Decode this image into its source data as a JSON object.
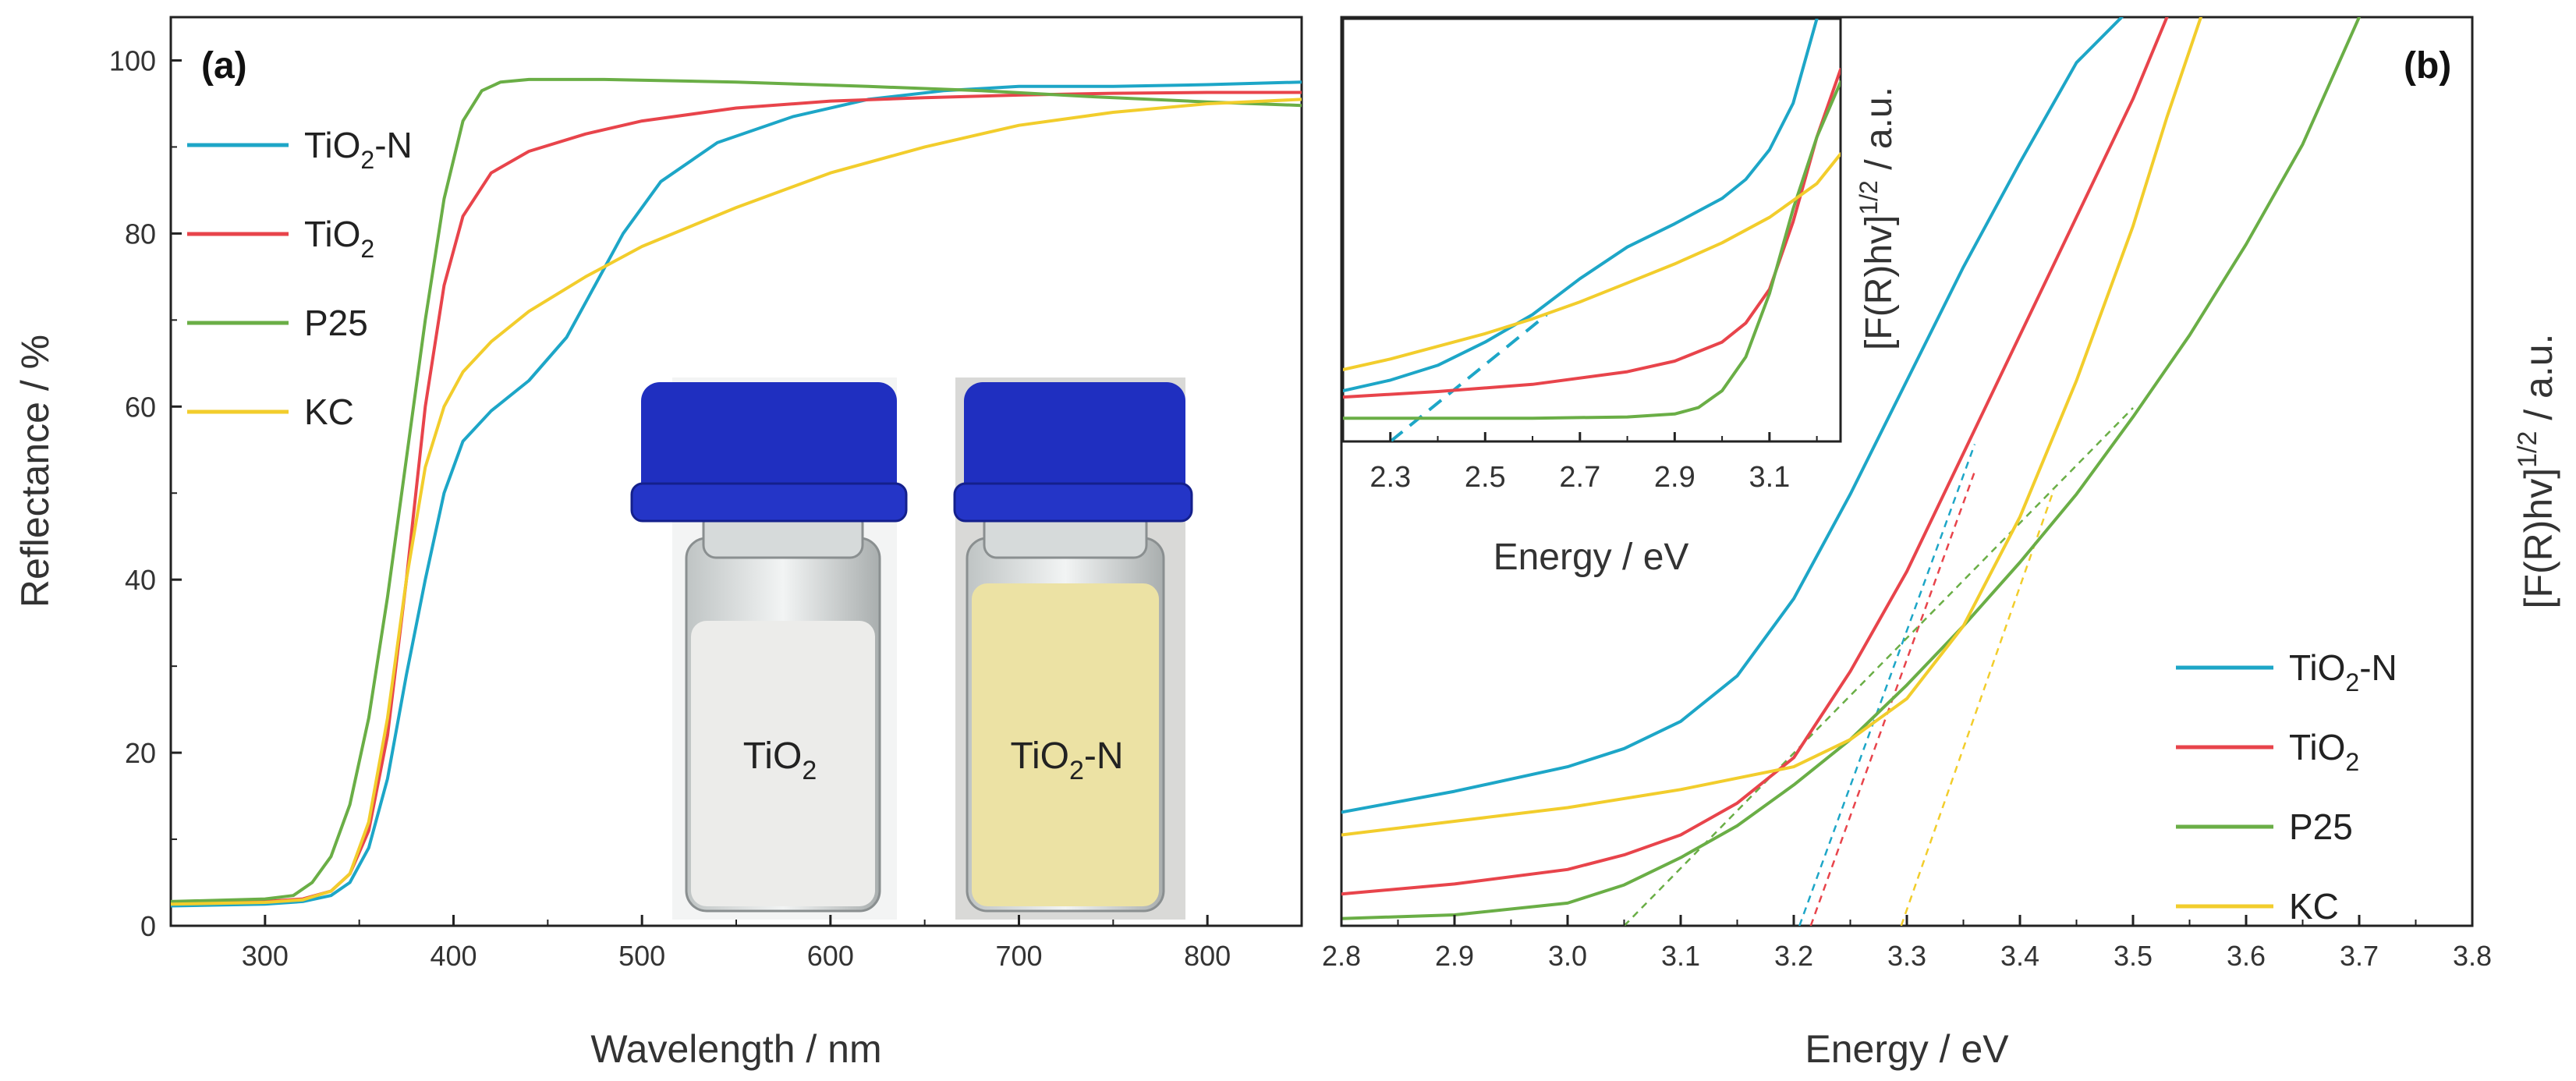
{
  "colors": {
    "TiO2-N": "#1da6c7",
    "TiO2": "#e8444b",
    "P25": "#6aae46",
    "KC": "#f2cd2c",
    "cap": "#1f2fc0",
    "powder_white": "#ececea",
    "powder_yellow": "#ece2a4"
  },
  "chart_data": [
    {
      "id": "a",
      "type": "line",
      "panel_label": "(a)",
      "xlabel": "Wavelength / nm",
      "ylabel": "Reflectance / %",
      "xlim": [
        250,
        850
      ],
      "ylim": [
        0,
        105
      ],
      "xticks": [
        300,
        400,
        500,
        600,
        700,
        800
      ],
      "yticks": [
        0,
        20,
        40,
        60,
        80,
        100
      ],
      "legend_position": "top-left",
      "legend": [
        {
          "label": "TiO",
          "sub": "2",
          "suffix": "-N",
          "series": "TiO2-N"
        },
        {
          "label": "TiO",
          "sub": "2",
          "suffix": "",
          "series": "TiO2"
        },
        {
          "label": "P25",
          "sub": "",
          "suffix": "",
          "series": "P25"
        },
        {
          "label": "KC",
          "sub": "",
          "suffix": "",
          "series": "KC"
        }
      ],
      "series": [
        {
          "name": "TiO2-N",
          "x": [
            250,
            300,
            320,
            335,
            345,
            355,
            365,
            375,
            385,
            395,
            405,
            420,
            440,
            460,
            475,
            490,
            510,
            540,
            580,
            620,
            660,
            700,
            750,
            800,
            850
          ],
          "y": [
            2.3,
            2.5,
            2.8,
            3.5,
            5,
            9,
            17,
            29,
            40,
            50,
            56,
            59.5,
            63,
            68,
            74,
            80,
            86,
            90.5,
            93.5,
            95.5,
            96.5,
            97,
            97,
            97.2,
            97.5
          ]
        },
        {
          "name": "TiO2",
          "x": [
            250,
            300,
            320,
            335,
            345,
            355,
            365,
            375,
            385,
            395,
            405,
            420,
            440,
            470,
            500,
            550,
            600,
            650,
            700,
            750,
            800,
            850
          ],
          "y": [
            2.6,
            2.8,
            3.1,
            4,
            6,
            11,
            22,
            40,
            60,
            74,
            82,
            87,
            89.5,
            91.5,
            93,
            94.5,
            95.3,
            95.7,
            96,
            96.2,
            96.3,
            96.3
          ]
        },
        {
          "name": "P25",
          "x": [
            250,
            300,
            315,
            325,
            335,
            345,
            355,
            365,
            375,
            385,
            395,
            405,
            415,
            425,
            440,
            480,
            550,
            620,
            680,
            740,
            800,
            850
          ],
          "y": [
            2.8,
            3.1,
            3.5,
            5,
            8,
            14,
            24,
            38,
            54,
            70,
            84,
            93,
            96.5,
            97.5,
            97.8,
            97.8,
            97.5,
            97,
            96.5,
            95.8,
            95.2,
            94.8
          ]
        },
        {
          "name": "KC",
          "x": [
            250,
            300,
            320,
            335,
            345,
            355,
            365,
            375,
            385,
            395,
            405,
            420,
            440,
            470,
            500,
            550,
            600,
            650,
            700,
            750,
            800,
            850
          ],
          "y": [
            2.5,
            2.7,
            3.0,
            4,
            6,
            12,
            24,
            40,
            53,
            60,
            64,
            67.5,
            71,
            75,
            78.5,
            83,
            87,
            90,
            92.5,
            94,
            95,
            95.5
          ]
        }
      ],
      "photos": [
        {
          "label": "TiO",
          "sub": "2",
          "suffix": "",
          "powder": "white"
        },
        {
          "label": "TiO",
          "sub": "2",
          "suffix": "-N",
          "powder": "yellow"
        }
      ]
    },
    {
      "id": "b",
      "type": "line",
      "panel_label": "(b)",
      "xlabel": "Energy / eV",
      "ylabel_main": "[F(R)hv]",
      "ylabel_sup": "1/2",
      "ylabel_tail": " / a.u.",
      "xlim": [
        2.8,
        3.8
      ],
      "ylim": [
        0,
        100
      ],
      "xticks": [
        2.8,
        2.9,
        3.0,
        3.1,
        3.2,
        3.3,
        3.4,
        3.5,
        3.6,
        3.7,
        3.8
      ],
      "xtick_labels": [
        "2.8",
        "2.9",
        "3.0",
        "3.1",
        "3.2",
        "3.3",
        "3.4",
        "3.5",
        "3.6",
        "3.7",
        "3.8"
      ],
      "legend_position": "bottom-right",
      "legend": [
        {
          "label": "TiO",
          "sub": "2",
          "suffix": "-N",
          "series": "TiO2-N"
        },
        {
          "label": "TiO",
          "sub": "2",
          "suffix": "",
          "series": "TiO2"
        },
        {
          "label": "P25",
          "sub": "",
          "suffix": "",
          "series": "P25"
        },
        {
          "label": "KC",
          "sub": "",
          "suffix": "",
          "series": "KC"
        }
      ],
      "series": [
        {
          "name": "TiO2-N",
          "x": [
            2.8,
            2.9,
            3.0,
            3.05,
            3.1,
            3.15,
            3.2,
            3.25,
            3.3,
            3.35,
            3.4,
            3.45,
            3.49
          ],
          "y": [
            12.5,
            14.8,
            17.5,
            19.5,
            22.5,
            27.5,
            36,
            47.5,
            60,
            72.5,
            84,
            95,
            100
          ]
        },
        {
          "name": "TiO2",
          "x": [
            2.8,
            2.9,
            3.0,
            3.05,
            3.1,
            3.15,
            3.2,
            3.25,
            3.3,
            3.35,
            3.4,
            3.45,
            3.5,
            3.53
          ],
          "y": [
            3.5,
            4.6,
            6.2,
            7.8,
            10,
            13.5,
            18.5,
            28,
            39,
            52,
            65,
            78,
            91,
            100
          ]
        },
        {
          "name": "P25",
          "x": [
            2.8,
            2.9,
            3.0,
            3.05,
            3.1,
            3.15,
            3.2,
            3.25,
            3.3,
            3.35,
            3.4,
            3.45,
            3.5,
            3.55,
            3.6,
            3.65,
            3.7
          ],
          "y": [
            0.8,
            1.2,
            2.5,
            4.5,
            7.5,
            11,
            15.5,
            20.5,
            26.5,
            33,
            40,
            47.5,
            56,
            65,
            75,
            86,
            100
          ]
        },
        {
          "name": "KC",
          "x": [
            2.8,
            2.9,
            3.0,
            3.1,
            3.2,
            3.25,
            3.3,
            3.35,
            3.4,
            3.45,
            3.5,
            3.53,
            3.56
          ],
          "y": [
            10,
            11.5,
            13,
            15,
            17.5,
            20.5,
            25,
            33,
            45,
            60,
            77,
            89,
            100
          ]
        }
      ],
      "tauc_fits": [
        {
          "series": "TiO2-N",
          "x": [
            3.205,
            3.36
          ],
          "y": [
            0,
            53
          ]
        },
        {
          "series": "TiO2",
          "x": [
            3.215,
            3.36
          ],
          "y": [
            0,
            50
          ]
        },
        {
          "series": "P25",
          "x": [
            3.05,
            3.5
          ],
          "y": [
            0,
            57
          ]
        },
        {
          "series": "KC",
          "x": [
            3.295,
            3.43
          ],
          "y": [
            0,
            48
          ]
        }
      ],
      "inset": {
        "xlabel": "Energy / eV",
        "ylabel_main": "[F(R)hv]",
        "ylabel_sup": "1/2",
        "ylabel_tail": " / a.u.",
        "xlim": [
          2.2,
          3.25
        ],
        "ylim": [
          0,
          100
        ],
        "xticks": [
          2.3,
          2.5,
          2.7,
          2.9,
          3.1
        ],
        "xtick_labels": [
          "2.3",
          "2.5",
          "2.7",
          "2.9",
          "3.1"
        ],
        "series": [
          {
            "name": "TiO2-N",
            "x": [
              2.2,
              2.3,
              2.4,
              2.5,
              2.6,
              2.7,
              2.8,
              2.9,
              3.0,
              3.05,
              3.1,
              3.15,
              3.2
            ],
            "y": [
              12,
              14.5,
              18,
              23.5,
              30,
              38.5,
              46,
              51.5,
              57.5,
              62,
              69,
              80,
              100
            ]
          },
          {
            "name": "TiO2",
            "x": [
              2.2,
              2.4,
              2.6,
              2.8,
              2.9,
              3.0,
              3.05,
              3.1,
              3.15,
              3.2,
              3.25
            ],
            "y": [
              10.5,
              11.8,
              13.5,
              16.5,
              19,
              23.5,
              28,
              36,
              52,
              72,
              88
            ]
          },
          {
            "name": "P25",
            "x": [
              2.2,
              2.4,
              2.6,
              2.8,
              2.9,
              2.95,
              3.0,
              3.05,
              3.1,
              3.15,
              3.2,
              3.25
            ],
            "y": [
              5.5,
              5.5,
              5.5,
              5.8,
              6.5,
              8,
              12,
              20,
              35,
              55,
              72,
              85
            ]
          },
          {
            "name": "KC",
            "x": [
              2.2,
              2.3,
              2.4,
              2.5,
              2.6,
              2.7,
              2.8,
              2.9,
              3.0,
              3.1,
              3.2,
              3.25
            ],
            "y": [
              17,
              19.5,
              22.5,
              25.5,
              29,
              33,
              37.5,
              42,
              47,
              53,
              61,
              68
            ]
          }
        ],
        "tauc_fits": [
          {
            "series": "TiO2-N",
            "x": [
              2.3,
              2.63
            ],
            "y": [
              0,
              30
            ]
          }
        ]
      }
    }
  ]
}
